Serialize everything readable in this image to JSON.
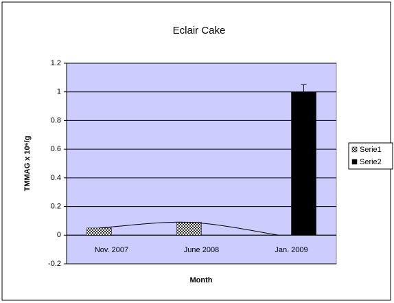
{
  "chart_data": {
    "type": "bar",
    "title": "Eclair Cake",
    "xlabel": "Month",
    "ylabel": "TMMAG x 10⁶/g",
    "categories": [
      "Nov. 2007",
      "June 2008",
      "Jan. 2009"
    ],
    "series": [
      {
        "name": "Serie1",
        "color": "#555555",
        "values": [
          0.05,
          0.09,
          0
        ]
      },
      {
        "name": "Serie2",
        "color": "#000000",
        "values": [
          0,
          0,
          1
        ],
        "errors": [
          0,
          0,
          0.05
        ]
      }
    ],
    "ylim": [
      -0.2,
      1.2
    ],
    "yticks": [
      -0.2,
      0,
      0.2,
      0.4,
      0.6,
      0.8,
      1,
      1.2
    ],
    "grid": true,
    "plot_background": "#ccccff",
    "legend": "right"
  }
}
